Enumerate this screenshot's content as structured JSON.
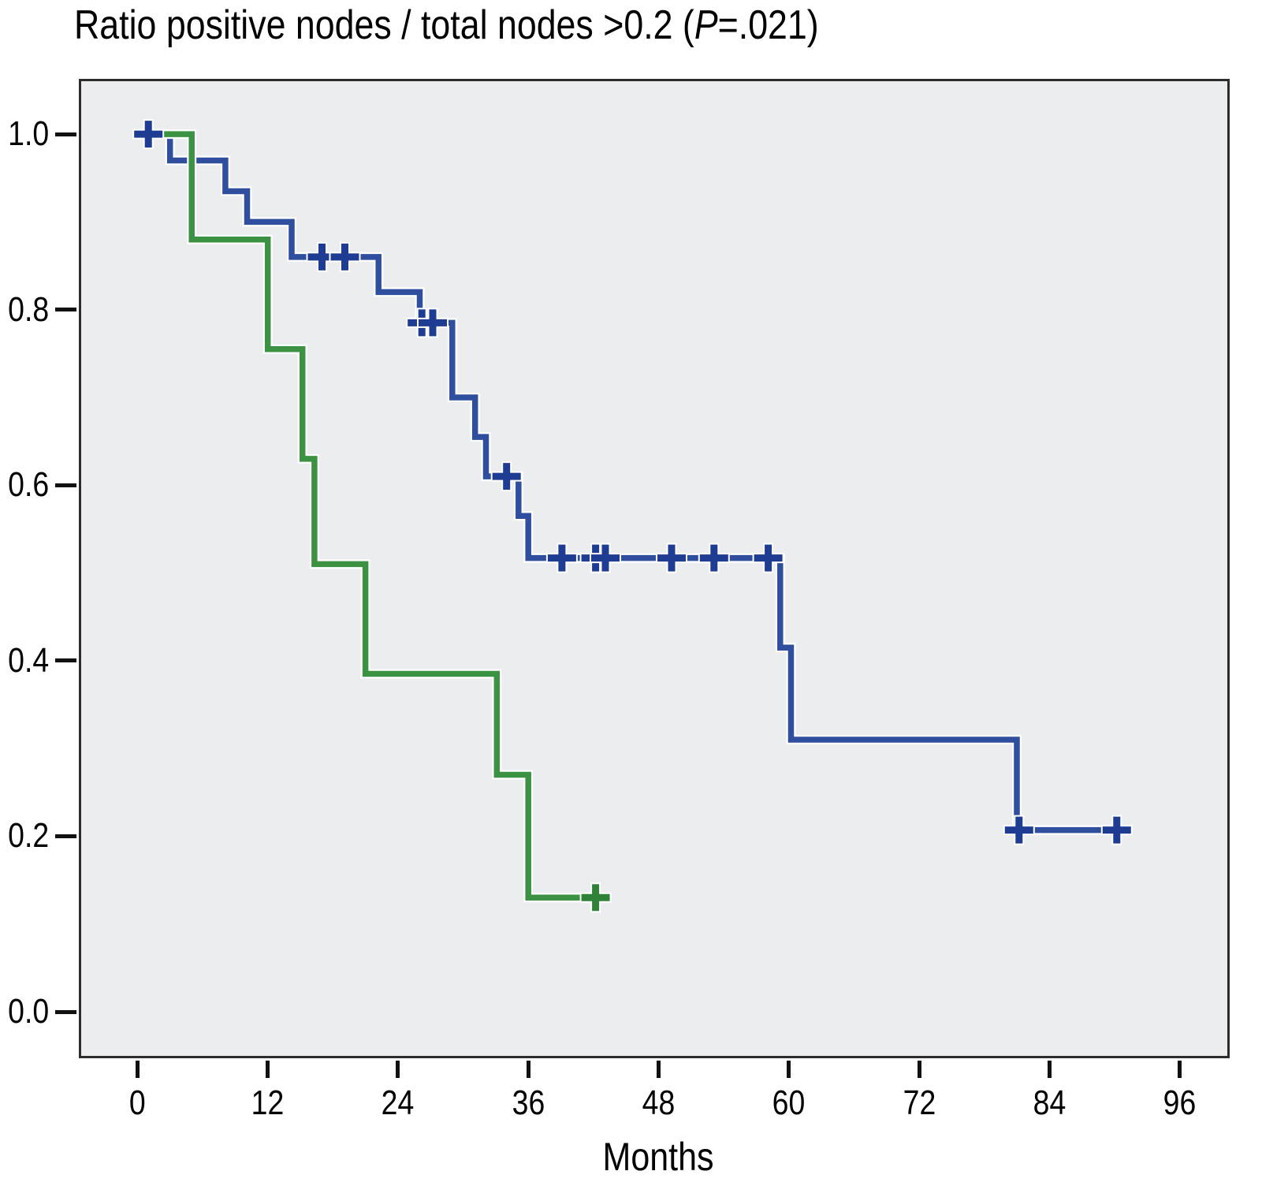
{
  "title": {
    "pre": "Ratio positive nodes / total nodes >0.2 (",
    "italic": "P",
    "post": "=.021)"
  },
  "chart_data": {
    "type": "line",
    "subtype": "kaplan-meier-step-curves",
    "title": "Ratio positive nodes / total nodes >0.2 (P=.021)",
    "xlabel": "Months",
    "ylabel": "",
    "xlim": [
      -5.4,
      100.6
    ],
    "ylim": [
      -0.053,
      1.063
    ],
    "x_ticks": [
      0,
      12,
      24,
      36,
      48,
      60,
      72,
      84,
      96
    ],
    "y_ticks": [
      0.0,
      0.2,
      0.4,
      0.6,
      0.8,
      1.0
    ],
    "grid": false,
    "legend": "none",
    "plot_bg": "#ebedee",
    "frame_color": "#2c2c2c",
    "series": [
      {
        "name": "blue-curve",
        "color": "#2f4f9e",
        "censor_color": "#1e3c92",
        "points": [
          [
            0,
            1.0
          ],
          [
            3,
            0.97
          ],
          [
            8.1,
            0.935
          ],
          [
            10.1,
            0.9
          ],
          [
            14.2,
            0.86
          ],
          [
            22.2,
            0.82
          ],
          [
            26,
            0.785
          ],
          [
            29,
            0.7
          ],
          [
            31.1,
            0.655
          ],
          [
            32.1,
            0.61
          ],
          [
            35.1,
            0.565
          ],
          [
            36,
            0.517
          ],
          [
            59.2,
            0.415
          ],
          [
            60.2,
            0.31
          ],
          [
            81,
            0.207
          ]
        ],
        "end": 91,
        "censors": [
          [
            1,
            1.0
          ],
          [
            17,
            0.86
          ],
          [
            19.1,
            0.86
          ],
          [
            26.2,
            0.785
          ],
          [
            27.2,
            0.785
          ],
          [
            34,
            0.61
          ],
          [
            39.1,
            0.517
          ],
          [
            42.2,
            0.517
          ],
          [
            43.1,
            0.517
          ],
          [
            49.2,
            0.517
          ],
          [
            53.1,
            0.517
          ],
          [
            58.1,
            0.517
          ],
          [
            81.2,
            0.207
          ],
          [
            90.2,
            0.207
          ]
        ]
      },
      {
        "name": "green-curve",
        "color": "#3b9243",
        "censor_color": "#2e8136",
        "points": [
          [
            0,
            1.0
          ],
          [
            5,
            0.88
          ],
          [
            12,
            0.755
          ],
          [
            15.2,
            0.63
          ],
          [
            16.3,
            0.51
          ],
          [
            21,
            0.385
          ],
          [
            33.1,
            0.27
          ],
          [
            36,
            0.13
          ]
        ],
        "end": 43,
        "censors": [
          [
            42.2,
            0.13
          ]
        ]
      }
    ]
  }
}
